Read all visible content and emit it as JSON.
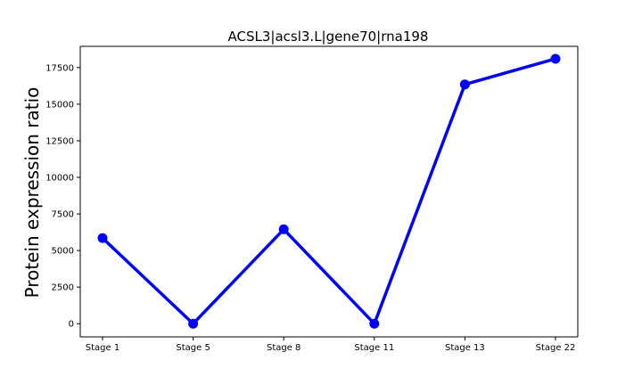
{
  "chart_data": {
    "type": "line",
    "title": "ACSL3|acsl3.L|gene70|rna198",
    "xlabel": "",
    "ylabel": "Protein expression ratio",
    "categories": [
      "Stage 1",
      "Stage 5",
      "Stage 8",
      "Stage 11",
      "Stage 13",
      "Stage 22"
    ],
    "series": [
      {
        "values": [
          5850,
          0,
          6450,
          0,
          16350,
          18100
        ],
        "color": "#0000ff",
        "marker": "circle"
      }
    ],
    "ylim": [
      -900,
      18950
    ],
    "yticks": [
      0,
      2500,
      5000,
      7500,
      10000,
      12500,
      15000,
      17500
    ],
    "ytick_labels": [
      "0",
      "2500",
      "5000",
      "7500",
      "10000",
      "12500",
      "15000",
      "17500"
    ],
    "grid": false,
    "legend": false
  }
}
